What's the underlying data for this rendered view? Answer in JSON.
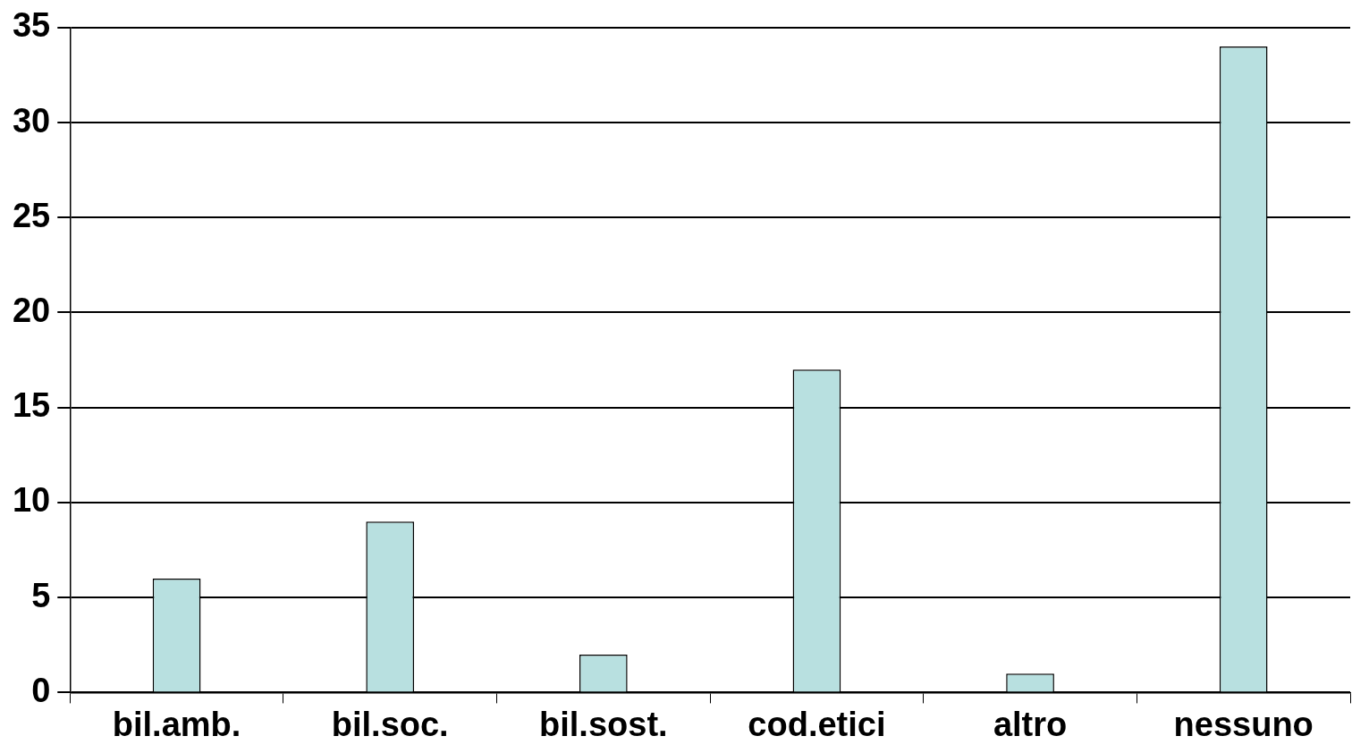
{
  "chart_data": {
    "type": "bar",
    "categories": [
      "bil.amb.",
      "bil.soc.",
      "bil.sost.",
      "cod.etici",
      "altro",
      "nessuno"
    ],
    "values": [
      6,
      9,
      2,
      17,
      1,
      34
    ],
    "color": "#b8e0e0",
    "ylim": [
      0,
      35
    ],
    "yticks": [
      0,
      5,
      10,
      15,
      20,
      25,
      30,
      35
    ],
    "grid": "y"
  }
}
